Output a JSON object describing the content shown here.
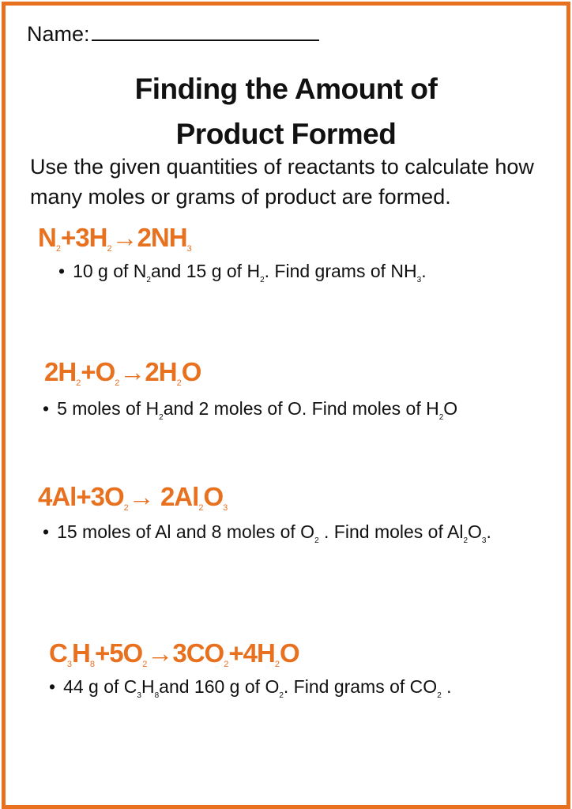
{
  "name_label": "Name:",
  "title": [
    "Finding the Amount of",
    "Product Formed"
  ],
  "instructions": "Use the given quantities of reactants to calculate how many moles or grams of product are formed.",
  "colors": {
    "accent": "#E8711F",
    "text": "#111111"
  },
  "bullet": "•",
  "problems": [
    {
      "equation": [
        [
          "N",
          ""
        ],
        [
          "",
          "2"
        ],
        [
          "+3H",
          ""
        ],
        [
          "",
          "2"
        ],
        [
          "→2NH",
          ""
        ],
        [
          "",
          "3"
        ]
      ],
      "question": [
        [
          "10 g of N",
          ""
        ],
        [
          "",
          "2"
        ],
        [
          "and 15 g of H",
          ""
        ],
        [
          "",
          "2"
        ],
        [
          ". Find grams of NH",
          ""
        ],
        [
          "",
          "3"
        ],
        [
          ".",
          ""
        ]
      ]
    },
    {
      "equation": [
        [
          "2H",
          ""
        ],
        [
          "",
          "2"
        ],
        [
          "+O",
          ""
        ],
        [
          "",
          "2"
        ],
        [
          "→2H",
          ""
        ],
        [
          "",
          "2"
        ],
        [
          "O",
          ""
        ]
      ],
      "question": [
        [
          "5 moles of H",
          ""
        ],
        [
          "",
          "2"
        ],
        [
          "and 2 moles of O. Find moles of H",
          ""
        ],
        [
          "",
          "2"
        ],
        [
          "O",
          ""
        ]
      ]
    },
    {
      "equation": [
        [
          "4Al+3O",
          ""
        ],
        [
          "",
          "2"
        ],
        [
          "→ 2Al",
          ""
        ],
        [
          "",
          "2"
        ],
        [
          "O",
          ""
        ],
        [
          "",
          "3"
        ]
      ],
      "question": [
        [
          "15 moles of Al and 8 moles of O",
          ""
        ],
        [
          "",
          "2"
        ],
        [
          " . Find moles of Al",
          ""
        ],
        [
          "",
          "2"
        ],
        [
          "O",
          ""
        ],
        [
          "",
          "3"
        ],
        [
          ".",
          ""
        ]
      ]
    },
    {
      "equation": [
        [
          "C",
          ""
        ],
        [
          "",
          "3"
        ],
        [
          "H",
          ""
        ],
        [
          "",
          "8"
        ],
        [
          "+5O",
          ""
        ],
        [
          "",
          "2"
        ],
        [
          "→3CO",
          ""
        ],
        [
          "",
          "2"
        ],
        [
          "+4H",
          ""
        ],
        [
          "",
          "2"
        ],
        [
          "O",
          ""
        ]
      ],
      "question": [
        [
          "44 g of C",
          ""
        ],
        [
          "",
          "3"
        ],
        [
          "H",
          ""
        ],
        [
          "",
          "8"
        ],
        [
          "and 160 g of O",
          ""
        ],
        [
          "",
          "2"
        ],
        [
          ". Find grams of CO",
          ""
        ],
        [
          "",
          "2"
        ],
        [
          " .",
          ""
        ]
      ]
    }
  ]
}
